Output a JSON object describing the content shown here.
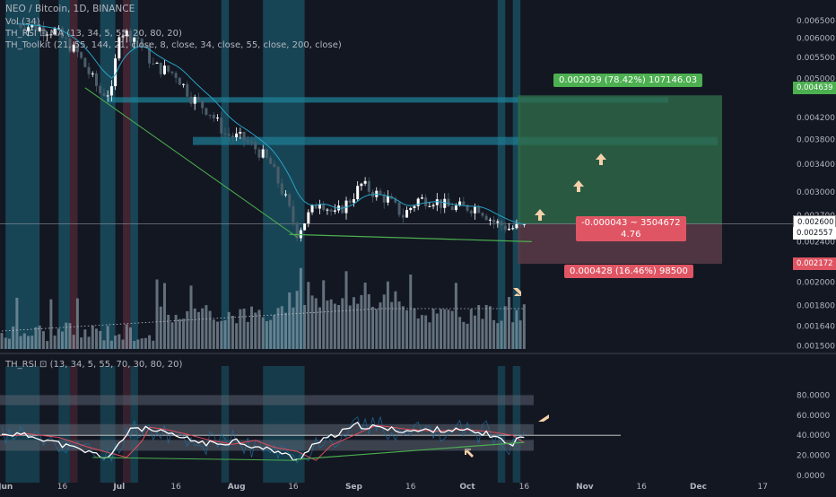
{
  "legend": {
    "title": "NEO / Bitcoin, 1D, BINANCE",
    "volume": "Vol (34)",
    "rsi_ma": "TH_RSI ⊡ MA (13, 34, 5, 55, 20, 80, 20)",
    "toolkit": "TH_Toolkit (21, 55, 144, 21, close, 8, close, 34, close, 55, close, 200, close)"
  },
  "rsi_legend": "TH_RSI ⊡ (13, 34, 5, 55, 70, 30, 80, 20)",
  "trade_boxes": {
    "target_label": "0.002039 (78.42%) 107146.03",
    "entry_label_1": "-0.000043 ~ 3504672",
    "entry_label_2": "4.76",
    "stop_label": "0.000428 (16.46%) 98500"
  },
  "price_tags": {
    "target": "0.004639",
    "entry": "0.002600",
    "last": "0.002557",
    "stop": "0.002172"
  },
  "colors": {
    "background": "#131722",
    "bull": "#ffffff",
    "bear": "#4a5d6a",
    "zone_cyan": "#1e7f96",
    "zone_red": "#7a3245",
    "trend_green": "#4caf50",
    "ema_cyan": "#26a3c4",
    "rsi_white": "#ffffff",
    "rsi_red": "#e24b5c",
    "target_fill": "#2f6b4a",
    "stop_fill": "#5a3b48",
    "arrow": "#f5d0a9"
  },
  "icons": [
    "arrow-up-icon",
    "arrow-down-right-icon",
    "arrow-up-left-icon",
    "arrow-left-icon"
  ],
  "chart_data": [
    {
      "type": "candlestick",
      "title": "NEO / Bitcoin, 1D, BINANCE",
      "x_axis_labels": [
        "Jun",
        "16",
        "Jul",
        "16",
        "Aug",
        "16",
        "Sep",
        "16",
        "Oct",
        "16",
        "Nov",
        "16",
        "Dec",
        "17"
      ],
      "y_axis_labels": [
        "0.006500",
        "0.006000",
        "0.005500",
        "0.005000",
        "0.004200",
        "0.003800",
        "0.003400",
        "0.003000",
        "0.002700",
        "0.002400",
        "0.002000",
        "0.001800",
        "0.001640",
        "0.001500"
      ],
      "y_scale": "log",
      "ylim": [
        0.00148,
        0.0069
      ],
      "close_path": [
        {
          "x": "Jun 4",
          "y": 0.0064
        },
        {
          "x": "Jun 14",
          "y": 0.0062
        },
        {
          "x": "Jun 20",
          "y": 0.0056
        },
        {
          "x": "Jun 26",
          "y": 0.0047
        },
        {
          "x": "Jun 29",
          "y": 0.0047
        },
        {
          "x": "Jul 1",
          "y": 0.0062
        },
        {
          "x": "Jul 6",
          "y": 0.006
        },
        {
          "x": "Jul 10",
          "y": 0.0053
        },
        {
          "x": "Jul 16",
          "y": 0.0051
        },
        {
          "x": "Jul 20",
          "y": 0.0046
        },
        {
          "x": "Jul 25",
          "y": 0.0043
        },
        {
          "x": "Jul 29",
          "y": 0.0039
        },
        {
          "x": "Aug 3",
          "y": 0.0038
        },
        {
          "x": "Aug 7",
          "y": 0.0036
        },
        {
          "x": "Aug 10",
          "y": 0.0034
        },
        {
          "x": "Aug 14",
          "y": 0.0029
        },
        {
          "x": "Aug 17",
          "y": 0.0025
        },
        {
          "x": "Aug 20",
          "y": 0.0027
        },
        {
          "x": "Aug 23",
          "y": 0.0029
        },
        {
          "x": "Aug 27",
          "y": 0.0027
        },
        {
          "x": "Aug 31",
          "y": 0.0029
        },
        {
          "x": "Sep 3",
          "y": 0.0031
        },
        {
          "x": "Sep 6",
          "y": 0.003
        },
        {
          "x": "Sep 10",
          "y": 0.0029
        },
        {
          "x": "Sep 14",
          "y": 0.0027
        },
        {
          "x": "Sep 18",
          "y": 0.0029
        },
        {
          "x": "Sep 22",
          "y": 0.0029
        },
        {
          "x": "Sep 26",
          "y": 0.0028
        },
        {
          "x": "Sep 30",
          "y": 0.0028
        },
        {
          "x": "Oct 4",
          "y": 0.0028
        },
        {
          "x": "Oct 8",
          "y": 0.00262
        },
        {
          "x": "Oct 12",
          "y": 0.00255
        },
        {
          "x": "Oct 16",
          "y": 0.002557
        }
      ],
      "levels": {
        "target": 0.004639,
        "entry": 0.0026,
        "last": 0.002557,
        "stop": 0.002172
      }
    },
    {
      "type": "line",
      "title": "TH_RSI ⊡ (13, 34, 5, 55, 70, 30, 80, 20)",
      "y_axis_labels": [
        "80.0000",
        "60.0000",
        "40.0000",
        "20.0000",
        "0.0000"
      ],
      "ylim": [
        0,
        100
      ],
      "series": [
        {
          "name": "",
          "points": [
            {
              "x": "Jun 1",
              "y": 42
            },
            {
              "x": "Jun 10",
              "y": 38
            },
            {
              "x": "Jun 18",
              "y": 28
            },
            {
              "x": "Jun 24",
              "y": 22
            },
            {
              "x": "Jun 28",
              "y": 18
            },
            {
              "x": "Jul 2",
              "y": 34
            },
            {
              "x": "Jul 4",
              "y": 48
            },
            {
              "x": "Jul 8",
              "y": 46
            },
            {
              "x": "Jul 14",
              "y": 41
            },
            {
              "x": "Jul 20",
              "y": 35
            },
            {
              "x": "Jul 26",
              "y": 31
            },
            {
              "x": "Aug 1",
              "y": 35
            },
            {
              "x": "Aug 6",
              "y": 28
            },
            {
              "x": "Aug 12",
              "y": 24
            },
            {
              "x": "Aug 17",
              "y": 15
            },
            {
              "x": "Aug 21",
              "y": 30
            },
            {
              "x": "Aug 27",
              "y": 40
            },
            {
              "x": "Sep 2",
              "y": 50
            },
            {
              "x": "Sep 10",
              "y": 46
            },
            {
              "x": "Sep 18",
              "y": 44
            },
            {
              "x": "Sep 24",
              "y": 46
            },
            {
              "x": "Oct 1",
              "y": 44
            },
            {
              "x": "Oct 8",
              "y": 40
            },
            {
              "x": "Oct 12",
              "y": 30
            },
            {
              "x": "Oct 16",
              "y": 40
            }
          ]
        }
      ],
      "levels": [
        70,
        30,
        80,
        20
      ]
    }
  ]
}
